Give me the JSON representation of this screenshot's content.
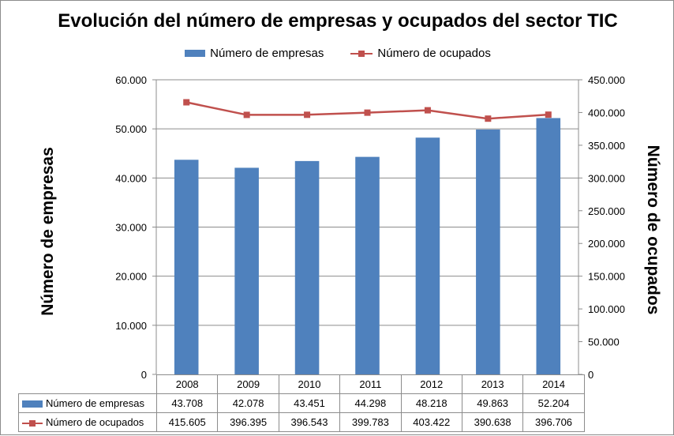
{
  "chart_data": {
    "type": "bar+line",
    "title": "Evolución del número de empresas y ocupados del sector TIC",
    "categories": [
      "2008",
      "2009",
      "2010",
      "2011",
      "2012",
      "2013",
      "2014"
    ],
    "series": [
      {
        "name": "Número de empresas",
        "type": "bar",
        "axis": "left",
        "values": [
          43708,
          42078,
          43451,
          44298,
          48218,
          49863,
          52204
        ],
        "labels": [
          "43.708",
          "42.078",
          "43.451",
          "44.298",
          "48.218",
          "49.863",
          "52.204"
        ],
        "color": "#4f81bd"
      },
      {
        "name": "Número de ocupados",
        "type": "line",
        "axis": "right",
        "values": [
          415605,
          396395,
          396543,
          399783,
          403422,
          390638,
          396706
        ],
        "labels": [
          "415.605",
          "396.395",
          "396.543",
          "399.783",
          "403.422",
          "390.638",
          "396.706"
        ],
        "color": "#c0504d"
      }
    ],
    "ylabel_left": "Número de empresas",
    "ylabel_right": "Número de ocupados",
    "ylim_left": [
      0,
      60000
    ],
    "ylim_right": [
      0,
      450000
    ],
    "yticks_left": [
      "0",
      "10.000",
      "20.000",
      "30.000",
      "40.000",
      "50.000",
      "60.000"
    ],
    "yticks_right": [
      "0",
      "50.000",
      "100.000",
      "150.000",
      "200.000",
      "250.000",
      "300.000",
      "350.000",
      "400.000",
      "450.000"
    ],
    "grid": "horizontal",
    "legend_position": "top",
    "data_table": true
  }
}
